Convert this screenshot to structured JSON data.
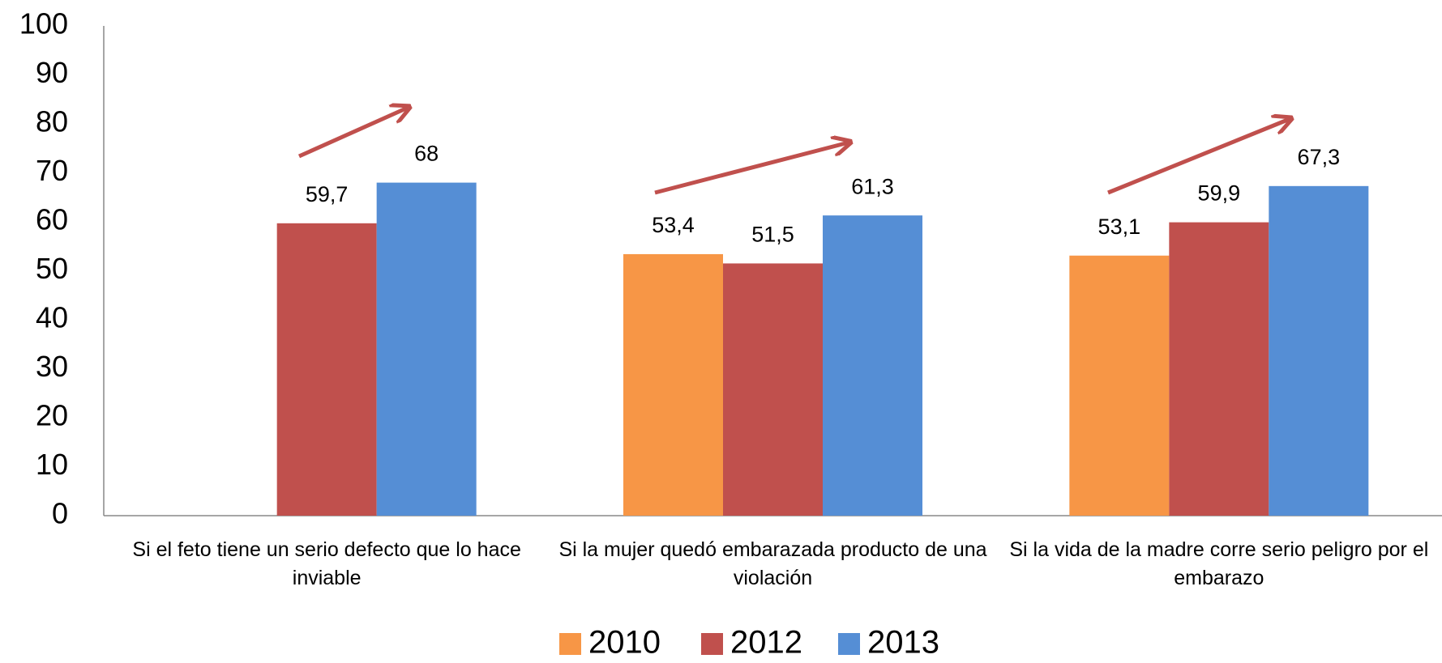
{
  "chart_data": {
    "type": "bar",
    "categories": [
      "Si el feto tiene un serio defecto que lo hace inviable",
      "Si la mujer quedó embarazada producto de una violación",
      "Si la vida de la madre corre serio peligro por el embarazo"
    ],
    "series": [
      {
        "name": "2010",
        "color": "#f79646",
        "values": [
          null,
          53.4,
          53.1
        ],
        "value_labels": [
          null,
          "53,4",
          "53,1"
        ]
      },
      {
        "name": "2012",
        "color": "#c0504d",
        "values": [
          59.7,
          51.5,
          59.9
        ],
        "value_labels": [
          "59,7",
          "51,5",
          "59,9"
        ]
      },
      {
        "name": "2013",
        "color": "#558ed5",
        "values": [
          68,
          61.3,
          67.3
        ],
        "value_labels": [
          "68",
          "61,3",
          "67,3"
        ]
      }
    ],
    "ylim": [
      0,
      100
    ],
    "yticks": [
      0,
      10,
      20,
      30,
      40,
      50,
      60,
      70,
      80,
      90,
      100
    ],
    "grid": false,
    "legend": "bottom"
  }
}
